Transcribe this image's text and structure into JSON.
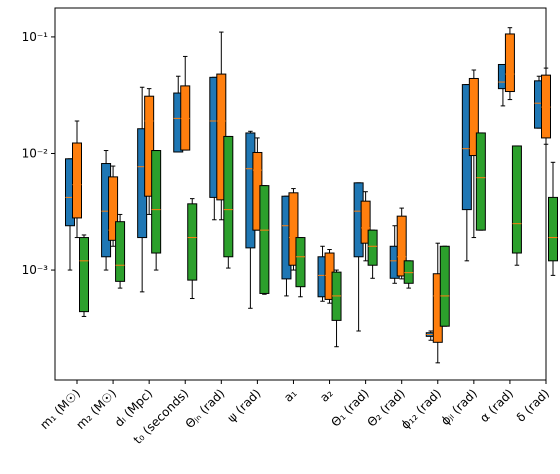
{
  "chart_data": {
    "type": "box",
    "yscale": "log",
    "categories": [
      "m₁ (M☉)",
      "m₂ (M☉)",
      "dₗ (Mpc)",
      "t₀ (seconds)",
      "Θⱼₙ (rad)",
      "ψ (rad)",
      "a₁",
      "a₂",
      "Θ₁ (rad)",
      "Θ₂ (rad)",
      "ϕ₁₂ (rad)",
      "ϕⱼₗ (rad)",
      "α (rad)",
      "δ (rad)"
    ],
    "ylim": [
      0.000114,
      0.177
    ],
    "yticks": [
      {
        "value": 0.001,
        "label": "10⁻³"
      },
      {
        "value": 0.01,
        "label": "10⁻²"
      },
      {
        "value": 0.1,
        "label": "10⁻¹"
      }
    ],
    "median_color": "#ff7f0e",
    "series": [
      {
        "color": "#1f77b4",
        "values": [
          {
            "whislo": 0.001,
            "q1": 0.0024,
            "med": 0.0042,
            "q3": 0.009,
            "whishi": 0.009
          },
          {
            "whislo": 0.001,
            "q1": 0.0013,
            "med": 0.0032,
            "q3": 0.0082,
            "whishi": 0.0106
          },
          {
            "whislo": 0.00065,
            "q1": 0.0019,
            "med": 0.0077,
            "q3": 0.0163,
            "whishi": 0.037
          },
          {
            "whislo": 0.0103,
            "q1": 0.0103,
            "med": 0.02,
            "q3": 0.033,
            "whishi": 0.046
          },
          {
            "whislo": 0.0027,
            "q1": 0.0042,
            "med": 0.019,
            "q3": 0.045,
            "whishi": 0.045
          },
          {
            "whislo": 0.00047,
            "q1": 0.00155,
            "med": 0.0074,
            "q3": 0.015,
            "whishi": 0.0155
          },
          {
            "whislo": 0.0006,
            "q1": 0.00084,
            "med": 0.0024,
            "q3": 0.0043,
            "whishi": 0.0043
          },
          {
            "whislo": 0.00054,
            "q1": 0.00059,
            "med": 0.0009,
            "q3": 0.0013,
            "whishi": 0.0016
          },
          {
            "whislo": 0.0003,
            "q1": 0.0013,
            "med": 0.0032,
            "q3": 0.0056,
            "whishi": 0.0056
          },
          {
            "whislo": 0.00077,
            "q1": 0.00085,
            "med": 0.0012,
            "q3": 0.0016,
            "whishi": 0.0024
          },
          {
            "whislo": 0.00025,
            "q1": 0.00027,
            "med": 0.00028,
            "q3": 0.00029,
            "whishi": 0.0003
          },
          {
            "whislo": 0.0012,
            "q1": 0.0033,
            "med": 0.011,
            "q3": 0.039,
            "whishi": 0.039
          },
          {
            "whislo": 0.0256,
            "q1": 0.036,
            "med": 0.041,
            "q3": 0.058,
            "whishi": 0.058
          },
          {
            "whislo": 0.0165,
            "q1": 0.0165,
            "med": 0.027,
            "q3": 0.042,
            "whishi": 0.046
          }
        ]
      },
      {
        "color": "#ff7f0e",
        "values": [
          {
            "whislo": 0.0019,
            "q1": 0.0028,
            "med": 0.0054,
            "q3": 0.0123,
            "whishi": 0.019
          },
          {
            "whislo": 0.0016,
            "q1": 0.0018,
            "med": 0.0022,
            "q3": 0.0063,
            "whishi": 0.0078
          },
          {
            "whislo": 0.003,
            "q1": 0.0043,
            "med": 0.019,
            "q3": 0.031,
            "whishi": 0.036
          },
          {
            "whislo": 0.0107,
            "q1": 0.0107,
            "med": 0.02,
            "q3": 0.038,
            "whishi": 0.068
          },
          {
            "whislo": 0.0027,
            "q1": 0.004,
            "med": 0.019,
            "q3": 0.048,
            "whishi": 0.11
          },
          {
            "whislo": 0.0022,
            "q1": 0.0022,
            "med": 0.0072,
            "q3": 0.0102,
            "whishi": 0.0136
          },
          {
            "whislo": 0.001,
            "q1": 0.0011,
            "med": 0.0019,
            "q3": 0.0046,
            "whishi": 0.005
          },
          {
            "whislo": 0.00052,
            "q1": 0.00056,
            "med": 0.0009,
            "q3": 0.0014,
            "whishi": 0.0015
          },
          {
            "whislo": 0.0012,
            "q1": 0.0017,
            "med": 0.0023,
            "q3": 0.0039,
            "whishi": 0.0047
          },
          {
            "whislo": 0.00084,
            "q1": 0.00089,
            "med": 0.0013,
            "q3": 0.0029,
            "whishi": 0.0034
          },
          {
            "whislo": 0.00016,
            "q1": 0.00024,
            "med": 0.0006,
            "q3": 0.00093,
            "whishi": 0.0017
          },
          {
            "whislo": 0.0019,
            "q1": 0.0096,
            "med": 0.011,
            "q3": 0.044,
            "whishi": 0.052
          },
          {
            "whislo": 0.029,
            "q1": 0.034,
            "med": 0.048,
            "q3": 0.106,
            "whishi": 0.12
          },
          {
            "whislo": 0.012,
            "q1": 0.0136,
            "med": 0.025,
            "q3": 0.047,
            "whishi": 0.054
          }
        ]
      },
      {
        "color": "#2ca02c",
        "values": [
          {
            "whislo": 0.0004,
            "q1": 0.00044,
            "med": 0.0012,
            "q3": 0.0019,
            "whishi": 0.002
          },
          {
            "whislo": 0.0007,
            "q1": 0.0008,
            "med": 0.0011,
            "q3": 0.0026,
            "whishi": 0.003
          },
          {
            "whislo": 0.001,
            "q1": 0.0014,
            "med": 0.0033,
            "q3": 0.0106,
            "whishi": 0.0106
          },
          {
            "whislo": 0.00057,
            "q1": 0.00082,
            "med": 0.0019,
            "q3": 0.0037,
            "whishi": 0.0041
          },
          {
            "whislo": 0.00104,
            "q1": 0.0013,
            "med": 0.0033,
            "q3": 0.014,
            "whishi": 0.014
          },
          {
            "whislo": 0.00062,
            "q1": 0.00063,
            "med": 0.0022,
            "q3": 0.0053,
            "whishi": 0.0053
          },
          {
            "whislo": 0.00059,
            "q1": 0.00072,
            "med": 0.0013,
            "q3": 0.0019,
            "whishi": 0.0019
          },
          {
            "whislo": 0.00022,
            "q1": 0.00037,
            "med": 0.0006,
            "q3": 0.00096,
            "whishi": 0.001
          },
          {
            "whislo": 0.00085,
            "q1": 0.0011,
            "med": 0.0016,
            "q3": 0.0022,
            "whishi": 0.0022
          },
          {
            "whislo": 0.0007,
            "q1": 0.00077,
            "med": 0.00095,
            "q3": 0.0012,
            "whishi": 0.0012
          },
          {
            "whislo": 0.00033,
            "q1": 0.00033,
            "med": 0.0006,
            "q3": 0.0016,
            "whishi": 0.0016
          },
          {
            "whislo": 0.0022,
            "q1": 0.0022,
            "med": 0.0062,
            "q3": 0.015,
            "whishi": 0.015
          },
          {
            "whislo": 0.0011,
            "q1": 0.0014,
            "med": 0.0025,
            "q3": 0.0116,
            "whishi": 0.0116
          },
          {
            "whislo": 0.0009,
            "q1": 0.0012,
            "med": 0.0019,
            "q3": 0.0042,
            "whishi": 0.0084
          }
        ]
      }
    ]
  }
}
